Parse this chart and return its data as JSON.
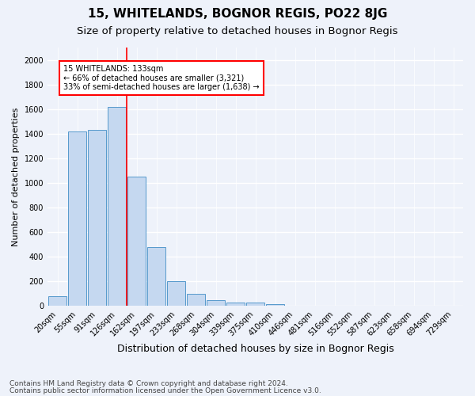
{
  "title": "15, WHITELANDS, BOGNOR REGIS, PO22 8JG",
  "subtitle": "Size of property relative to detached houses in Bognor Regis",
  "xlabel": "Distribution of detached houses by size in Bognor Regis",
  "ylabel": "Number of detached properties",
  "footnote1": "Contains HM Land Registry data © Crown copyright and database right 2024.",
  "footnote2": "Contains public sector information licensed under the Open Government Licence v3.0.",
  "bar_labels": [
    "20sqm",
    "55sqm",
    "91sqm",
    "126sqm",
    "162sqm",
    "197sqm",
    "233sqm",
    "268sqm",
    "304sqm",
    "339sqm",
    "375sqm",
    "410sqm",
    "446sqm",
    "481sqm",
    "516sqm",
    "552sqm",
    "587sqm",
    "623sqm",
    "658sqm",
    "694sqm",
    "729sqm"
  ],
  "bar_values": [
    80,
    1420,
    1430,
    1620,
    1050,
    480,
    200,
    100,
    45,
    30,
    25,
    18,
    0,
    0,
    0,
    0,
    0,
    0,
    0,
    0,
    0
  ],
  "bar_color": "#c5d8f0",
  "bar_edge_color": "#5599cc",
  "vline_color": "red",
  "annotation_text": "15 WHITELANDS: 133sqm\n← 66% of detached houses are smaller (3,321)\n33% of semi-detached houses are larger (1,638) →",
  "annotation_box_edge": "red",
  "background_color": "#eef2fa",
  "ylim": [
    0,
    2100
  ],
  "yticks": [
    0,
    200,
    400,
    600,
    800,
    1000,
    1200,
    1400,
    1600,
    1800,
    2000
  ],
  "grid_color": "white",
  "title_fontsize": 11,
  "subtitle_fontsize": 9.5,
  "xlabel_fontsize": 9,
  "ylabel_fontsize": 8,
  "tick_fontsize": 7,
  "footnote_fontsize": 6.5
}
